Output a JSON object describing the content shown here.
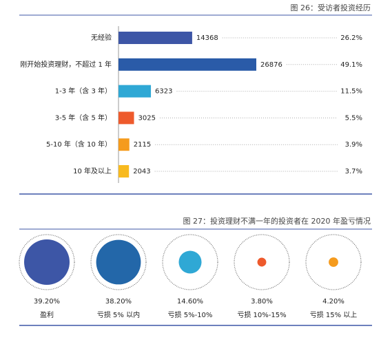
{
  "chart_data": [
    {
      "type": "hbar",
      "title": "图 26：受访者投资经历",
      "categories": [
        "无经验",
        "刚开始投资理财，不超过 1 年",
        "1-3 年（含 3 年）",
        "3-5 年（含 5 年）",
        "5-10 年（含 10 年）",
        "10 年及以上"
      ],
      "values": [
        14368,
        26876,
        6323,
        3025,
        2115,
        2043
      ],
      "share_labels": [
        "26.2%",
        "49.1%",
        "11.5%",
        "5.5%",
        "3.9%",
        "3.7%"
      ],
      "colors": [
        "#3d56a6",
        "#2a5ba8",
        "#2fa8d5",
        "#ee5a2c",
        "#f59b1d",
        "#f8ba1f"
      ]
    },
    {
      "type": "bubble",
      "title": "图 27：投资理财不满一年的投资者在 2020 年盈亏情况",
      "categories": [
        "盈利",
        "亏损 5% 以内",
        "亏损 5%-10%",
        "亏损 10%-15%",
        "亏损 15% 以上"
      ],
      "values": [
        39.2,
        38.2,
        14.6,
        3.8,
        4.2
      ],
      "value_labels": [
        "39.20%",
        "38.20%",
        "14.60%",
        "3.80%",
        "4.20%"
      ],
      "colors": [
        "#3d56a6",
        "#2367a9",
        "#2fa8d5",
        "#ee5a2c",
        "#f59b1d"
      ]
    }
  ]
}
